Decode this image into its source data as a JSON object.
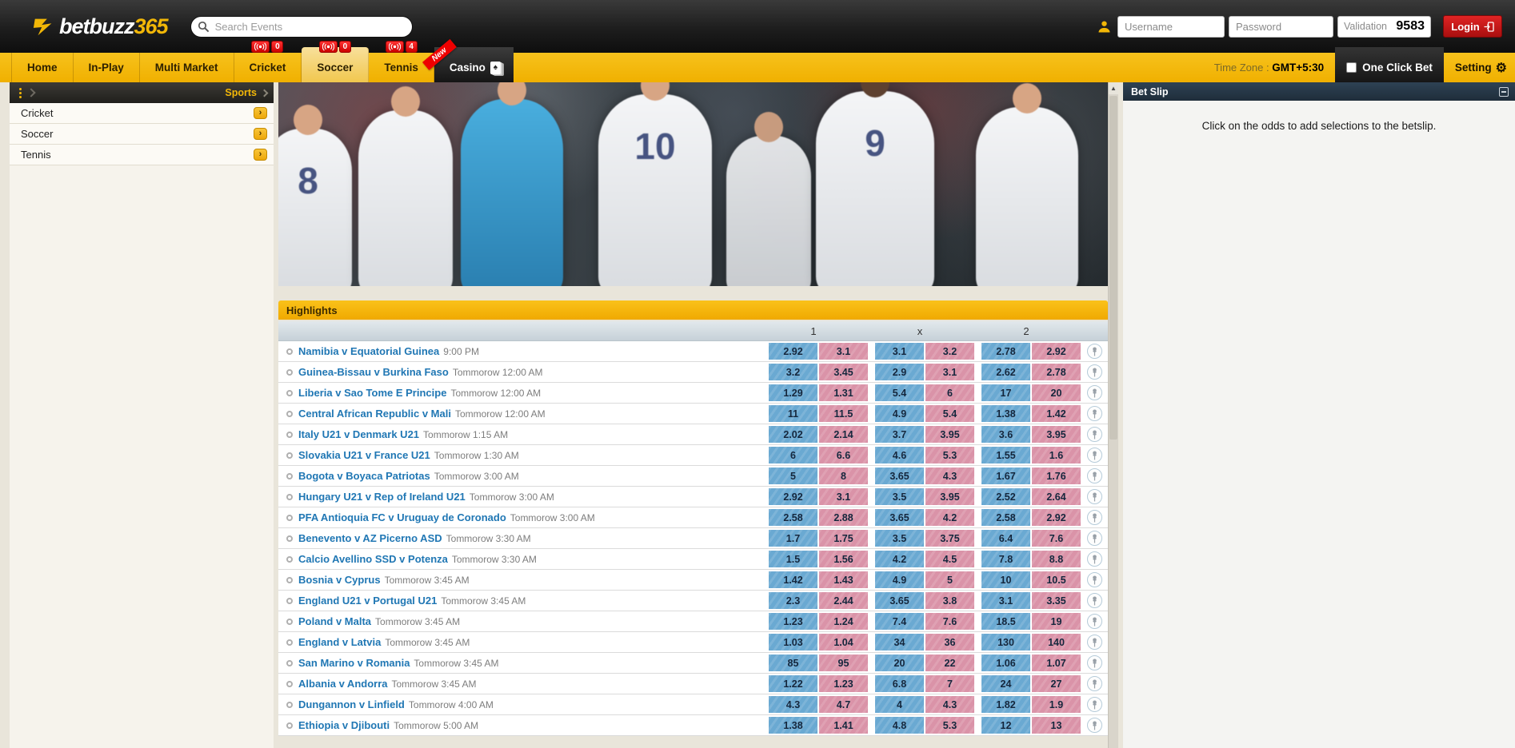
{
  "brand": {
    "name_left": "betbuzz",
    "name_right": "365"
  },
  "topbar": {
    "search_placeholder": "Search Events",
    "username_placeholder": "Username",
    "password_placeholder": "Password",
    "validation_label": "Validation",
    "validation_code": "9583",
    "login_label": "Login"
  },
  "nav": {
    "tabs": [
      {
        "label": "Home"
      },
      {
        "label": "In-Play"
      },
      {
        "label": "Multi Market"
      },
      {
        "label": "Cricket",
        "badge": "0"
      },
      {
        "label": "Soccer",
        "badge": "0",
        "active": true
      },
      {
        "label": "Tennis",
        "badge": "4"
      },
      {
        "label": "Casino",
        "dark": true,
        "ribbon": "New",
        "card_icon": true
      }
    ],
    "timezone_label": "Time Zone :",
    "timezone_value": "GMT+5:30",
    "one_click_bet_label": "One Click Bet",
    "setting_label": "Setting"
  },
  "sidebar": {
    "header": "Sports",
    "items": [
      {
        "label": "Cricket"
      },
      {
        "label": "Soccer"
      },
      {
        "label": "Tennis"
      }
    ]
  },
  "hero": {
    "jersey_numbers": [
      "8",
      "10",
      "9"
    ]
  },
  "main": {
    "highlights_title": "Highlights",
    "columns": [
      "1",
      "x",
      "2"
    ],
    "matches": [
      {
        "name": "Namibia v Equatorial Guinea",
        "time": "9:00 PM",
        "odds": [
          "2.92",
          "3.1",
          "3.1",
          "3.2",
          "2.78",
          "2.92"
        ]
      },
      {
        "name": "Guinea-Bissau v Burkina Faso",
        "time": "Tommorow 12:00 AM",
        "odds": [
          "3.2",
          "3.45",
          "2.9",
          "3.1",
          "2.62",
          "2.78"
        ]
      },
      {
        "name": "Liberia v Sao Tome E Principe",
        "time": "Tommorow 12:00 AM",
        "odds": [
          "1.29",
          "1.31",
          "5.4",
          "6",
          "17",
          "20"
        ]
      },
      {
        "name": "Central African Republic v Mali",
        "time": "Tommorow 12:00 AM",
        "odds": [
          "11",
          "11.5",
          "4.9",
          "5.4",
          "1.38",
          "1.42"
        ]
      },
      {
        "name": "Italy U21 v Denmark U21",
        "time": "Tommorow 1:15 AM",
        "odds": [
          "2.02",
          "2.14",
          "3.7",
          "3.95",
          "3.6",
          "3.95"
        ]
      },
      {
        "name": "Slovakia U21 v France U21",
        "time": "Tommorow 1:30 AM",
        "odds": [
          "6",
          "6.6",
          "4.6",
          "5.3",
          "1.55",
          "1.6"
        ]
      },
      {
        "name": "Bogota v Boyaca Patriotas",
        "time": "Tommorow 3:00 AM",
        "odds": [
          "5",
          "8",
          "3.65",
          "4.3",
          "1.67",
          "1.76"
        ]
      },
      {
        "name": "Hungary U21 v Rep of Ireland U21",
        "time": "Tommorow 3:00 AM",
        "odds": [
          "2.92",
          "3.1",
          "3.5",
          "3.95",
          "2.52",
          "2.64"
        ]
      },
      {
        "name": "PFA Antioquia FC v Uruguay de Coronado",
        "time": "Tommorow 3:00 AM",
        "odds": [
          "2.58",
          "2.88",
          "3.65",
          "4.2",
          "2.58",
          "2.92"
        ]
      },
      {
        "name": "Benevento v AZ Picerno ASD",
        "time": "Tommorow 3:30 AM",
        "odds": [
          "1.7",
          "1.75",
          "3.5",
          "3.75",
          "6.4",
          "7.6"
        ]
      },
      {
        "name": "Calcio Avellino SSD v Potenza",
        "time": "Tommorow 3:30 AM",
        "odds": [
          "1.5",
          "1.56",
          "4.2",
          "4.5",
          "7.8",
          "8.8"
        ]
      },
      {
        "name": "Bosnia v Cyprus",
        "time": "Tommorow 3:45 AM",
        "odds": [
          "1.42",
          "1.43",
          "4.9",
          "5",
          "10",
          "10.5"
        ]
      },
      {
        "name": "England U21 v Portugal U21",
        "time": "Tommorow 3:45 AM",
        "odds": [
          "2.3",
          "2.44",
          "3.65",
          "3.8",
          "3.1",
          "3.35"
        ]
      },
      {
        "name": "Poland v Malta",
        "time": "Tommorow 3:45 AM",
        "odds": [
          "1.23",
          "1.24",
          "7.4",
          "7.6",
          "18.5",
          "19"
        ]
      },
      {
        "name": "England v Latvia",
        "time": "Tommorow 3:45 AM",
        "odds": [
          "1.03",
          "1.04",
          "34",
          "36",
          "130",
          "140"
        ]
      },
      {
        "name": "San Marino v Romania",
        "time": "Tommorow 3:45 AM",
        "odds": [
          "85",
          "95",
          "20",
          "22",
          "1.06",
          "1.07"
        ]
      },
      {
        "name": "Albania v Andorra",
        "time": "Tommorow 3:45 AM",
        "odds": [
          "1.22",
          "1.23",
          "6.8",
          "7",
          "24",
          "27"
        ]
      },
      {
        "name": "Dungannon v Linfield",
        "time": "Tommorow 4:00 AM",
        "odds": [
          "4.3",
          "4.7",
          "4",
          "4.3",
          "1.82",
          "1.9"
        ]
      },
      {
        "name": "Ethiopia v Djibouti",
        "time": "Tommorow 5:00 AM",
        "odds": [
          "1.38",
          "1.41",
          "4.8",
          "5.3",
          "12",
          "13"
        ]
      }
    ]
  },
  "betslip": {
    "title": "Bet Slip",
    "empty_message": "Click on the odds to add selections to the betslip."
  },
  "colors": {
    "accent_yellow": "#f2b707",
    "badge_red": "#d90000",
    "link_blue": "#2077b4",
    "back_blue": "#6aa9d2",
    "lay_pink": "#da93a8",
    "betslip_header": "#243442",
    "login_red": "#c01414",
    "highlight_bar": "#f3ae00"
  }
}
